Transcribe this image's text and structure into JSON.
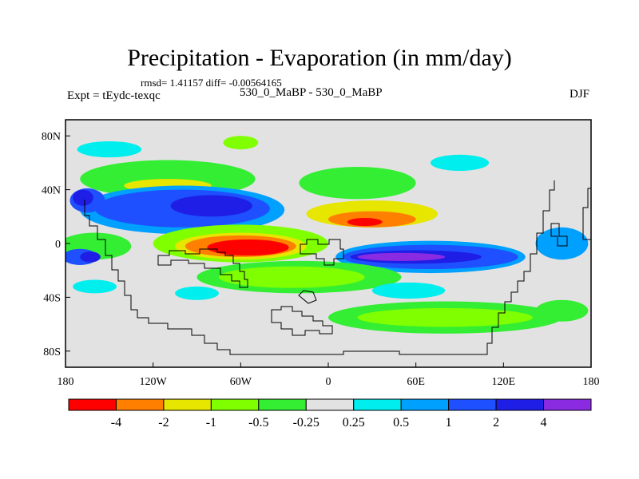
{
  "title": "Precipitation - Evaporation (in mm/day)",
  "stats": "rmsd= 1.41157 diff= -0.00564165",
  "expt": "Expt = tEydc-texqc",
  "cases": "530_0_MaBP - 530_0_MaBP",
  "season": "DJF",
  "axes": {
    "y_ticks": [
      {
        "label": "80N",
        "lat": 80
      },
      {
        "label": "40N",
        "lat": 40
      },
      {
        "label": "0",
        "lat": 0
      },
      {
        "label": "40S",
        "lat": -40
      },
      {
        "label": "80S",
        "lat": -80
      }
    ],
    "x_ticks": [
      {
        "label": "180",
        "lon": -180
      },
      {
        "label": "120W",
        "lon": -120
      },
      {
        "label": "60W",
        "lon": -60
      },
      {
        "label": "0",
        "lon": 0
      },
      {
        "label": "60E",
        "lon": 60
      },
      {
        "label": "120E",
        "lon": 120
      },
      {
        "label": "180",
        "lon": 180
      }
    ]
  },
  "colorbar": {
    "colors": [
      "#ff0000",
      "#ff7f00",
      "#e6e600",
      "#7fff00",
      "#33ee33",
      "#e2e2e2",
      "#00eeee",
      "#00a0ff",
      "#1e50ff",
      "#1e1ee6",
      "#8a2be2"
    ],
    "labels": [
      "-4",
      "-2",
      "-1",
      "-0.5",
      "-0.25",
      "0.25",
      "0.5",
      "1",
      "2",
      "4"
    ]
  },
  "features": [
    {
      "name": "cyan-patch-nw",
      "color": "#00eeee",
      "lon": -150,
      "lat": 70,
      "rx": 22,
      "ry": 6
    },
    {
      "name": "lightgreen-arctic",
      "color": "#7fff00",
      "lon": -60,
      "lat": 75,
      "rx": 12,
      "ry": 5
    },
    {
      "name": "cyan-patch-ne",
      "color": "#00eeee",
      "lon": 90,
      "lat": 60,
      "rx": 20,
      "ry": 6
    },
    {
      "name": "green-band-n",
      "color": "#33ee33",
      "lon": -110,
      "lat": 48,
      "rx": 60,
      "ry": 14
    },
    {
      "name": "yellow-npac",
      "color": "#e6e600",
      "lon": -110,
      "lat": 43,
      "rx": 30,
      "ry": 5
    },
    {
      "name": "green-natl",
      "color": "#33ee33",
      "lon": 20,
      "lat": 45,
      "rx": 40,
      "ry": 12
    },
    {
      "name": "yellow-natl",
      "color": "#e6e600",
      "lon": 30,
      "lat": 22,
      "rx": 45,
      "ry": 10
    },
    {
      "name": "orange-natl",
      "color": "#ff7f00",
      "lon": 30,
      "lat": 18,
      "rx": 30,
      "ry": 6
    },
    {
      "name": "red-natl",
      "color": "#ff0000",
      "lon": 25,
      "lat": 16,
      "rx": 12,
      "ry": 3
    },
    {
      "name": "lightblue-npac",
      "color": "#00a0ff",
      "lon": -100,
      "lat": 25,
      "rx": 70,
      "ry": 18
    },
    {
      "name": "blue-npac",
      "color": "#1e50ff",
      "lon": -100,
      "lat": 26,
      "rx": 60,
      "ry": 14
    },
    {
      "name": "darkblue-npac",
      "color": "#1e1ee6",
      "lon": -80,
      "lat": 28,
      "rx": 28,
      "ry": 8
    },
    {
      "name": "blue-nw",
      "color": "#1e50ff",
      "lon": -165,
      "lat": 32,
      "rx": 12,
      "ry": 9
    },
    {
      "name": "darkblue-nw",
      "color": "#1e1ee6",
      "lon": -168,
      "lat": 34,
      "rx": 7,
      "ry": 6
    },
    {
      "name": "blue-nwpac",
      "color": "#00a0ff",
      "lon": 160,
      "lat": 0,
      "rx": 18,
      "ry": 12
    },
    {
      "name": "green-eq-w",
      "color": "#33ee33",
      "lon": -160,
      "lat": -2,
      "rx": 25,
      "ry": 10
    },
    {
      "name": "lightgreen-eq",
      "color": "#7fff00",
      "lon": -60,
      "lat": 0,
      "rx": 60,
      "ry": 14
    },
    {
      "name": "yellow-eq",
      "color": "#e6e600",
      "lon": -60,
      "lat": -2,
      "rx": 45,
      "ry": 10
    },
    {
      "name": "orange-eq",
      "color": "#ff7f00",
      "lon": -60,
      "lat": -2,
      "rx": 38,
      "ry": 8
    },
    {
      "name": "red-eq",
      "color": "#ff0000",
      "lon": -55,
      "lat": -3,
      "rx": 28,
      "ry": 6
    },
    {
      "name": "lightblue-spac",
      "color": "#00a0ff",
      "lon": 70,
      "lat": -10,
      "rx": 65,
      "ry": 12
    },
    {
      "name": "blue-spac",
      "color": "#1e50ff",
      "lon": 70,
      "lat": -10,
      "rx": 60,
      "ry": 9
    },
    {
      "name": "darkblue-spac",
      "color": "#1e1ee6",
      "lon": 60,
      "lat": -10,
      "rx": 45,
      "ry": 5
    },
    {
      "name": "purple-spac",
      "color": "#8a2be2",
      "lon": 50,
      "lat": -10,
      "rx": 30,
      "ry": 3
    },
    {
      "name": "blue-sw",
      "color": "#1e50ff",
      "lon": -170,
      "lat": -10,
      "rx": 12,
      "ry": 6
    },
    {
      "name": "darkblue-sw",
      "color": "#1e1ee6",
      "lon": -163,
      "lat": -10,
      "rx": 7,
      "ry": 4
    },
    {
      "name": "green-sh",
      "color": "#33ee33",
      "lon": -20,
      "lat": -25,
      "rx": 70,
      "ry": 12
    },
    {
      "name": "lightgreen-sh",
      "color": "#7fff00",
      "lon": -25,
      "lat": -25,
      "rx": 50,
      "ry": 8
    },
    {
      "name": "green-so",
      "color": "#33ee33",
      "lon": 80,
      "lat": -55,
      "rx": 80,
      "ry": 12
    },
    {
      "name": "lightgreen-so",
      "color": "#7fff00",
      "lon": 80,
      "lat": -55,
      "rx": 60,
      "ry": 7
    },
    {
      "name": "green-se",
      "color": "#33ee33",
      "lon": 160,
      "lat": -50,
      "rx": 18,
      "ry": 8
    },
    {
      "name": "cyan-sw",
      "color": "#00eeee",
      "lon": -160,
      "lat": -32,
      "rx": 15,
      "ry": 5
    },
    {
      "name": "cyan-sh",
      "color": "#00eeee",
      "lon": -90,
      "lat": -37,
      "rx": 15,
      "ry": 5
    },
    {
      "name": "cyan-shs",
      "color": "#00eeee",
      "lon": 55,
      "lat": -35,
      "rx": 25,
      "ry": 6
    }
  ]
}
